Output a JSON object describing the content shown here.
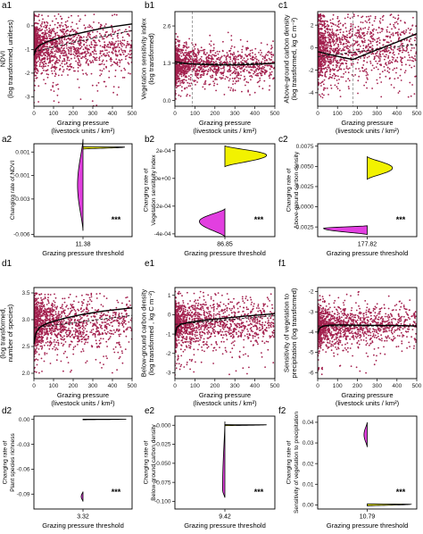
{
  "chart_data": [
    {
      "panel": "a1",
      "type": "scatter",
      "ylabel": [
        "NDVI",
        "(log transformed, unitless)"
      ],
      "xlabel": [
        "Grazing pressure",
        "(livestock units / km²)"
      ],
      "xlim": [
        0,
        500
      ],
      "ylim": [
        -3.4,
        0.6
      ],
      "xticks": [
        0,
        100,
        200,
        300,
        400,
        500
      ],
      "yticks": [
        -3,
        -2,
        -1,
        0
      ],
      "cloud": {
        "ymid": -0.9,
        "spread": 0.5,
        "ymin": -3.4,
        "ymax": 0.5
      },
      "fit": {
        "x": [
          0,
          10,
          30,
          60,
          100,
          160,
          250,
          350,
          500
        ],
        "y": [
          -1.25,
          -0.98,
          -0.82,
          -0.7,
          -0.58,
          -0.45,
          -0.28,
          -0.1,
          0.08
        ]
      },
      "dashed": {
        "x": [
          0,
          200,
          500
        ],
        "y": [
          -1.1,
          -0.7,
          -0.2
        ]
      }
    },
    {
      "panel": "b1",
      "type": "scatter",
      "ylabel": [
        "Vegetation sensitivity index",
        "(log transformed)"
      ],
      "xlabel": [
        "Grazing pressure",
        "(livestock units / km²)"
      ],
      "xlim": [
        0,
        500
      ],
      "ylim": [
        -0.2,
        3.1
      ],
      "xticks": [
        0,
        100,
        200,
        300,
        400,
        500
      ],
      "yticks": [
        0.0,
        1.3,
        2.6
      ],
      "ytick_labels": [
        "0.0",
        "1.3",
        "2.6"
      ],
      "cloud": {
        "ymid": 1.27,
        "spread": 0.3,
        "ymin": 0.05,
        "ymax": 2.75
      },
      "fit": {
        "x": [
          0,
          50,
          100,
          200,
          300,
          400,
          500
        ],
        "y": [
          1.35,
          1.3,
          1.27,
          1.24,
          1.24,
          1.26,
          1.3
        ]
      },
      "dashed": {
        "x": [
          0,
          500
        ],
        "y": [
          1.28,
          1.3
        ]
      },
      "vline": 87
    },
    {
      "panel": "c1",
      "type": "scatter",
      "ylabel": [
        "Above-ground carbon density",
        "(log transformed, kg C m⁻²)"
      ],
      "xlabel": [
        "Grazing pressure",
        "(livestock units / km²)"
      ],
      "xlim": [
        0,
        500
      ],
      "ylim": [
        -5.2,
        3.2
      ],
      "xticks": [
        0,
        100,
        200,
        300,
        400,
        500
      ],
      "yticks": [
        -4,
        -2,
        0,
        2
      ],
      "cloud": {
        "ymid": 0.0,
        "spread": 1.3,
        "ymin": -4.5,
        "ymax": 3.0
      },
      "fit": {
        "x": [
          0,
          60,
          120,
          178,
          240,
          320,
          400,
          500
        ],
        "y": [
          -0.35,
          -0.6,
          -0.85,
          -1.05,
          -0.6,
          -0.05,
          0.5,
          1.25
        ]
      },
      "dashed": {
        "x": [
          0,
          500
        ],
        "y": [
          -0.8,
          0.3
        ]
      },
      "vline": 178
    },
    {
      "panel": "a2",
      "type": "violin",
      "ylabel": [
        "Changing rate of NDVI"
      ],
      "xlabel": [
        "Grazing pressure threshold"
      ],
      "ylim": [
        -0.0062,
        0.0017
      ],
      "yticks": [
        0.001,
        -0.001,
        -0.003,
        -0.006
      ],
      "ytick_labels": [
        "0.001",
        "-0.001",
        "-0.003",
        "-0.006"
      ],
      "threshold": "11.38",
      "stars": "***",
      "violins": [
        {
          "color": "#f2f200",
          "center": 0.00135,
          "half": 0.0001,
          "direction": "right",
          "width": 0.92,
          "peak": 0.15
        },
        {
          "color": "#e23fe0",
          "center": -0.0018,
          "half": 0.0039,
          "direction": "left",
          "width": 0.12,
          "peak": 0.5
        }
      ]
    },
    {
      "panel": "b2",
      "type": "violin",
      "ylabel": [
        "Changing rate of",
        "Vegetation sensitivity index"
      ],
      "xlabel": [
        "Grazing pressure threshold"
      ],
      "ylim": [
        -0.00042,
        0.00025
      ],
      "yticks": [
        0.0002,
        0.0,
        -0.0002,
        -0.0004
      ],
      "ytick_labels": [
        "2e-04",
        "0e+00",
        "-2e-04",
        "-4e-04"
      ],
      "threshold": "86.85",
      "stars": "***",
      "violins": [
        {
          "color": "#f2f200",
          "center": 0.00016,
          "half": 7.5e-05,
          "direction": "right",
          "width": 0.9,
          "peak": 0.45
        },
        {
          "color": "#e23fe0",
          "center": -0.00032,
          "half": 0.0001,
          "direction": "left",
          "width": 0.55,
          "peak": 0.45
        }
      ]
    },
    {
      "panel": "c2",
      "type": "violin",
      "ylabel": [
        "Changing rate of",
        "Above-ground carbon density"
      ],
      "xlabel": [
        "Grazing pressure threshold"
      ],
      "ylim": [
        -0.0037,
        0.0078
      ],
      "yticks": [
        0.0075,
        0.005,
        0.0025,
        0.0,
        -0.0025
      ],
      "ytick_labels": [
        "0.0075",
        "0.0050",
        "0.0025",
        "0.0000",
        "-0.0025"
      ],
      "threshold": "177.82",
      "stars": "***",
      "violins": [
        {
          "color": "#f2f200",
          "center": 0.0048,
          "half": 0.0014,
          "direction": "right",
          "width": 0.55,
          "peak": 0.5
        },
        {
          "color": "#e23fe0",
          "center": -0.0029,
          "half": 0.00055,
          "direction": "left",
          "width": 0.95,
          "peak": 0.3
        }
      ]
    },
    {
      "panel": "d1",
      "type": "scatter",
      "ylabel": [
        "Plant species richness",
        "(log transformed,",
        "number of species)"
      ],
      "xlabel": [
        "Grazing pressure",
        "(livestock units / km²)"
      ],
      "xlim": [
        0,
        500
      ],
      "ylim": [
        1.9,
        3.6
      ],
      "xticks": [
        0,
        100,
        200,
        300,
        400,
        500
      ],
      "yticks": [
        2.0,
        2.5,
        3.0,
        3.5
      ],
      "ytick_labels": [
        "2.0",
        "2.5",
        "3.0",
        "3.5"
      ],
      "cloud": {
        "ymid": 2.95,
        "spread": 0.22,
        "ymin": 2.0,
        "ymax": 3.5
      },
      "fit": {
        "x": [
          0,
          10,
          30,
          60,
          100,
          160,
          250,
          350,
          500
        ],
        "y": [
          2.55,
          2.75,
          2.86,
          2.92,
          2.97,
          3.03,
          3.1,
          3.16,
          3.22
        ]
      },
      "dashed": {
        "x": [
          0,
          500
        ],
        "y": [
          2.85,
          3.08
        ]
      }
    },
    {
      "panel": "e1",
      "type": "scatter",
      "ylabel": [
        "Below-ground carbon density",
        "(log transformed , kg C m⁻²)"
      ],
      "xlabel": [
        "Grazing pressure",
        "(livestock units / km²)"
      ],
      "xlim": [
        0,
        500
      ],
      "ylim": [
        -3.3,
        1.4
      ],
      "xticks": [
        0,
        100,
        200,
        300,
        400,
        500
      ],
      "yticks": [
        1,
        0,
        -1,
        -2,
        -3
      ],
      "cloud": {
        "ymid": -0.45,
        "spread": 0.55,
        "ymin": -3.2,
        "ymax": 1.2
      },
      "fit": {
        "x": [
          0,
          10,
          30,
          60,
          100,
          160,
          250,
          350,
          500
        ],
        "y": [
          -1.1,
          -0.65,
          -0.5,
          -0.42,
          -0.35,
          -0.27,
          -0.18,
          -0.08,
          0.05
        ]
      },
      "dashed": {
        "x": [
          0,
          500
        ],
        "y": [
          -0.5,
          -0.05
        ]
      }
    },
    {
      "panel": "f1",
      "type": "scatter",
      "ylabel": [
        "Sensitivity of vegetation to",
        "precipitation (log transformed)"
      ],
      "xlabel": [
        "Grazing pressure",
        "(livestock units / km²)"
      ],
      "xlim": [
        0,
        500
      ],
      "ylim": [
        -6.3,
        -1.8
      ],
      "xticks": [
        0,
        100,
        200,
        300,
        400,
        500
      ],
      "yticks": [
        -2,
        -3,
        -4,
        -5,
        -6
      ],
      "cloud": {
        "ymid": -3.7,
        "spread": 0.45,
        "ymin": -6.2,
        "ymax": -2.0
      },
      "fit": {
        "x": [
          0,
          10,
          30,
          60,
          100,
          200,
          300,
          400,
          500
        ],
        "y": [
          -4.1,
          -3.8,
          -3.7,
          -3.66,
          -3.65,
          -3.66,
          -3.67,
          -3.68,
          -3.7
        ]
      },
      "dashed": {
        "x": [
          0,
          500
        ],
        "y": [
          -3.7,
          -3.7
        ]
      }
    },
    {
      "panel": "d2",
      "type": "violin",
      "ylabel": [
        "Changing rate of",
        "Plant species richness"
      ],
      "xlabel": [
        "Grazing pressure threshold"
      ],
      "ylim": [
        -0.108,
        0.004
      ],
      "yticks": [
        0.0,
        -0.03,
        -0.06,
        -0.09
      ],
      "ytick_labels": [
        "0.00",
        "-0.03",
        "-0.06",
        "-0.09"
      ],
      "threshold": "3.32",
      "stars": "***",
      "violins": [
        {
          "color": "#f2f200",
          "center": 0.0,
          "half": 0.0004,
          "direction": "right",
          "width": 0.95,
          "peak": 0.2
        },
        {
          "color": "#e23fe0",
          "center": -0.093,
          "half": 0.006,
          "direction": "left",
          "width": 0.04,
          "peak": 0.5
        }
      ]
    },
    {
      "panel": "e2",
      "type": "violin",
      "ylabel": [
        "Changing rate of",
        "Below-ground carbon density"
      ],
      "xlabel": [
        "Grazing pressure threshold"
      ],
      "ylim": [
        -0.11,
        0.012
      ],
      "yticks": [
        0.0,
        -0.025,
        -0.05,
        -0.075,
        -0.1
      ],
      "ytick_labels": [
        "0.000",
        "-0.025",
        "-0.050",
        "-0.075",
        "-0.100"
      ],
      "threshold": "9.42",
      "stars": "***",
      "violins": [
        {
          "color": "#f2f200",
          "center": 0.0001,
          "half": 0.0007,
          "direction": "right",
          "width": 0.9,
          "peak": 0.15
        },
        {
          "color": "#e23fe0",
          "center": -0.045,
          "half": 0.05,
          "direction": "left",
          "width": 0.05,
          "peak": 0.9
        }
      ]
    },
    {
      "panel": "f2",
      "type": "violin",
      "ylabel": [
        "Changing rate of",
        "Sensitivity of vegetation to precipitation"
      ],
      "xlabel": [
        "Grazing pressure threshold"
      ],
      "ylim": [
        -0.002,
        0.043
      ],
      "yticks": [
        0.04,
        0.03,
        0.02,
        0.01,
        0.0
      ],
      "ytick_labels": [
        "0.04",
        "0.03",
        "0.02",
        "0.01",
        "0.00"
      ],
      "threshold": "10.79",
      "stars": "***",
      "violins": [
        {
          "color": "#e23fe0",
          "center": 0.034,
          "half": 0.006,
          "direction": "left",
          "width": 0.07,
          "peak": 0.5
        },
        {
          "color": "#f2f200",
          "center": 0.0,
          "half": 0.0005,
          "direction": "right",
          "width": 0.95,
          "peak": 0.2
        }
      ]
    }
  ]
}
